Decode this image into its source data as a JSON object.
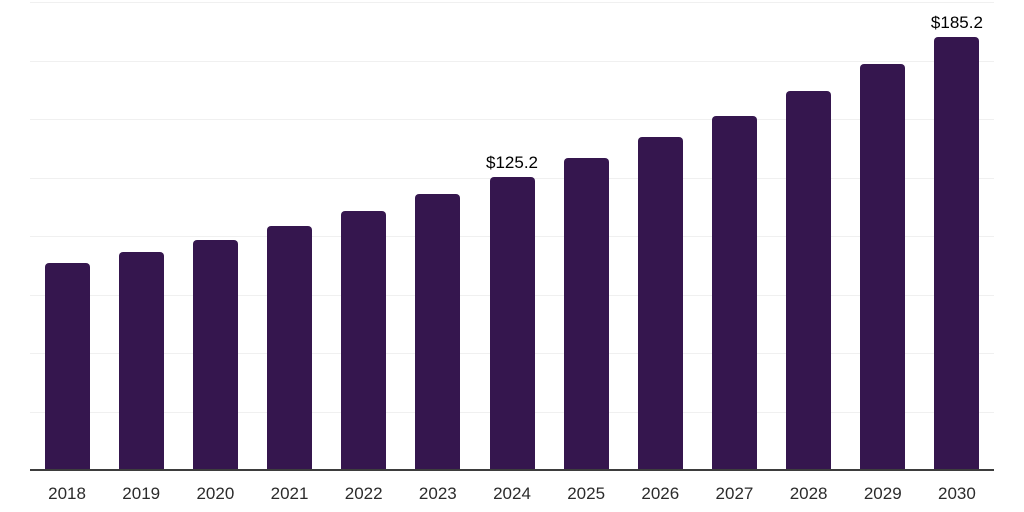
{
  "chart_data": {
    "type": "bar",
    "title": "",
    "xlabel": "",
    "ylabel": "",
    "categories": [
      "2018",
      "2019",
      "2020",
      "2021",
      "2022",
      "2023",
      "2024",
      "2025",
      "2026",
      "2027",
      "2028",
      "2029",
      "2030"
    ],
    "values": [
      88.3,
      93.0,
      98.5,
      104.3,
      110.9,
      118.0,
      125.2,
      133.5,
      142.2,
      151.4,
      162.1,
      173.6,
      185.2
    ],
    "bar_labels": [
      "",
      "",
      "",
      "",
      "",
      "",
      "$125.2",
      "",
      "",
      "",
      "",
      "",
      "$185.2"
    ],
    "ylim": [
      0,
      200
    ],
    "ytick_interval": 25,
    "grid": "horizontal",
    "y_axis_tick_labels_visible": false,
    "legend": "none",
    "colors": {
      "bar": "#35164e",
      "gridline": "#f0f0f0",
      "axis_line": "#3d3d3d",
      "bar_label_text": "#000000",
      "tick_label_text": "#2b2b2b",
      "background": "#ffffff"
    }
  }
}
